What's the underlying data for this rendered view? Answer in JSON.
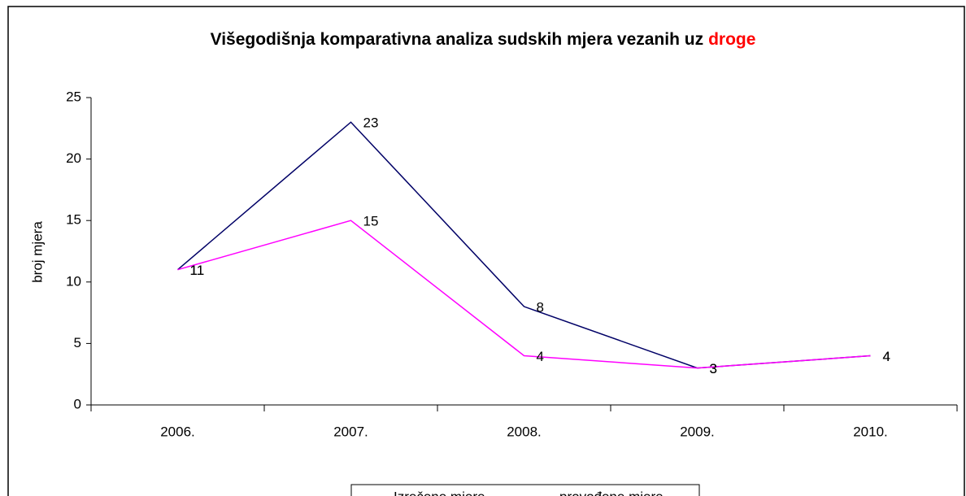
{
  "chart_data": {
    "type": "line",
    "title": "Višegodišnja komparativna analiza sudskih mjera vezanih uz",
    "title_highlight": "droge",
    "title_highlight_color": "#ff0000",
    "y_label": "broj mjera",
    "categories": [
      "2006.",
      "2007.",
      "2008.",
      "2009.",
      "2010."
    ],
    "series": [
      {
        "name": "Izrečene mjere",
        "color": "#000066",
        "values": [
          11,
          23,
          8,
          3,
          4
        ]
      },
      {
        "name": "provođene mjere",
        "color": "#ff00ff",
        "values": [
          11,
          15,
          4,
          3,
          4
        ]
      }
    ],
    "ylim": [
      0,
      25
    ],
    "yticks": [
      0,
      5,
      10,
      15,
      20,
      25
    ],
    "legend": "bottom"
  }
}
